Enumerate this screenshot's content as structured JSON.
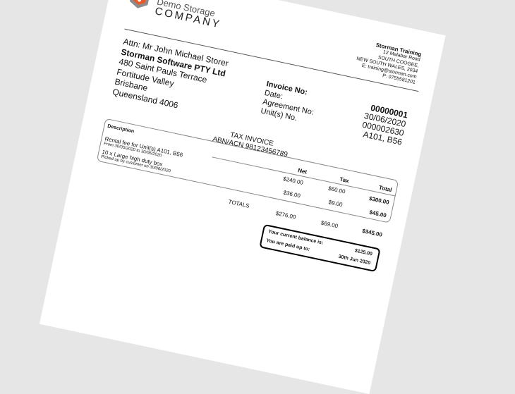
{
  "logo": {
    "line1": "Demo Storage",
    "line2": "COMPANY",
    "colors": {
      "orange": "#e8582a",
      "gray": "#8c8c8c"
    }
  },
  "recipient": {
    "attn": "Attn: Mr John Michael Storer",
    "company": "Storman Software PTY Ltd",
    "street": "480 Saint Pauls Terrace",
    "suburb": "Fortitude Valley",
    "city": "Brisbane",
    "state_postcode": "Queensland 4006"
  },
  "sender": {
    "name": "Storman Training",
    "street": "12 Malabar Road",
    "suburb": "SOUTH COOGEE,",
    "state_postcode": "NEW SOUTH WALES, 2034",
    "email": "E: training@storman.com",
    "phone": "P: 0755581201"
  },
  "invoice": {
    "labels": {
      "number": "Invoice No:",
      "date": "Date:",
      "agreement": "Agreement No:",
      "units": "Unit(s) No."
    },
    "number": "00000001",
    "date": "30/06/2020",
    "agreement": "000002630",
    "units": "A101, B56"
  },
  "tax_invoice": {
    "title": "TAX INVOICE",
    "abn": "ABN/ACN 98123456789"
  },
  "table": {
    "headers": {
      "description": "Description",
      "net": "Net",
      "tax": "Tax",
      "total": "Total"
    },
    "rows": [
      {
        "description": "Rental fee for Unit(s) A101, B56",
        "detail": "From 30/05/2020 to 30/06/2020",
        "net": "$240.00",
        "tax": "$60.00",
        "total": "$300.00"
      },
      {
        "description": "10 x Large high duty box",
        "detail": "Picked up by customer on 30/06/2020",
        "net": "$36.00",
        "tax": "$9.00",
        "total": "$45.00"
      }
    ],
    "totals": {
      "label": "TOTALS",
      "net": "$276.00",
      "tax": "$69.00",
      "total": "$345.00"
    }
  },
  "balance": {
    "balance_label": "Your current balance is:",
    "balance_value": "$125.00",
    "paid_label": "You are paid up to:",
    "paid_value": "30th Jun 2020"
  }
}
